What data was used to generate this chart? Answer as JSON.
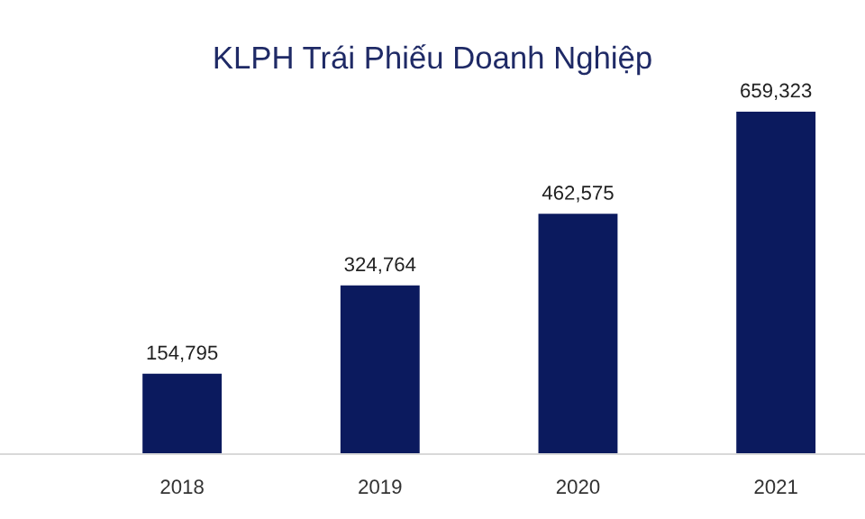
{
  "chart_data": {
    "type": "bar",
    "title": "KLPH Trái Phiếu Doanh Nghiệp",
    "categories": [
      "2018",
      "2019",
      "2020",
      "2021"
    ],
    "values": [
      154795,
      324764,
      462575,
      659323
    ],
    "value_labels": [
      "154,795",
      "324,764",
      "462,575",
      "659,323"
    ],
    "color": "#0b1a5e",
    "grid": false,
    "legend": false
  }
}
